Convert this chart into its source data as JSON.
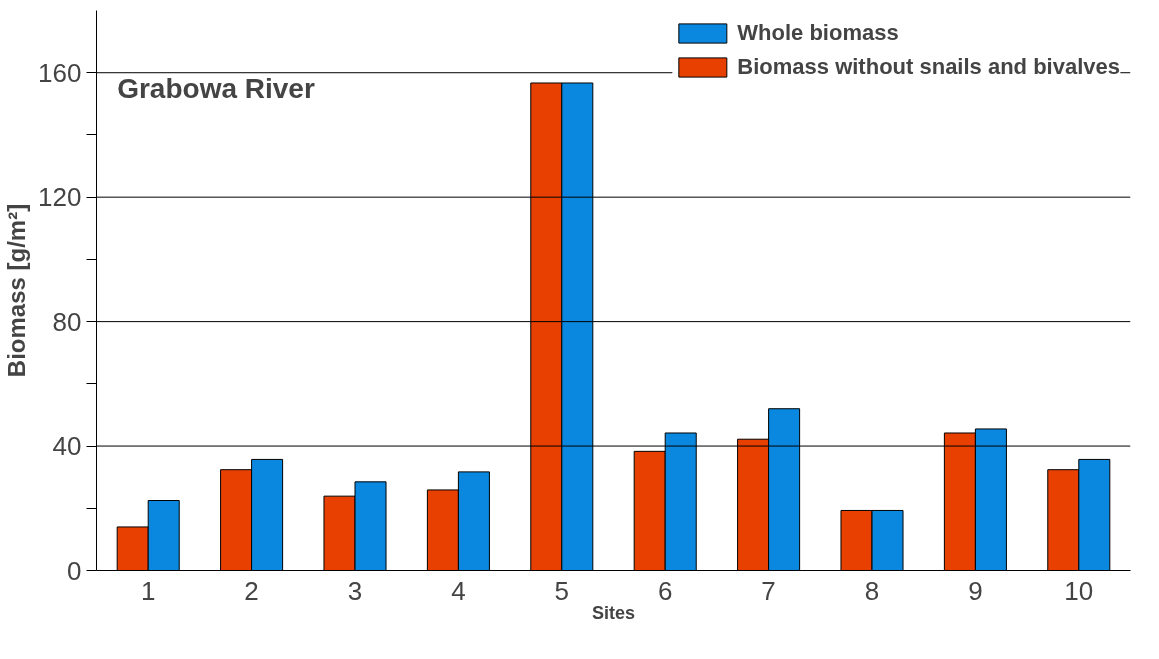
{
  "chart_data": {
    "type": "bar",
    "title": "Grabowa River",
    "xlabel": "Sites",
    "ylabel": "Biomass [g/m²]",
    "categories": [
      "1",
      "2",
      "3",
      "4",
      "5",
      "6",
      "7",
      "8",
      "9",
      "10"
    ],
    "series": [
      {
        "name": "Biomass without snails and bivalves",
        "color": "#e84000",
        "values": [
          14,
          32.4,
          23.9,
          25.9,
          156.7,
          38.3,
          42.2,
          19.3,
          44.2,
          32.4
        ]
      },
      {
        "name": "Whole biomass",
        "color": "#0a88e0",
        "values": [
          22.5,
          35.7,
          28.5,
          31.7,
          156.7,
          44.2,
          52,
          19.3,
          45.5,
          35.7
        ]
      }
    ],
    "ylim": [
      0,
      180
    ],
    "yticks": [
      0,
      {
        "value": 20,
        "label": null
      },
      40,
      {
        "value": 60,
        "label": null
      },
      80,
      {
        "value": 100,
        "label": null
      },
      120,
      {
        "value": 140,
        "label": null
      },
      160
    ],
    "grid": "y",
    "legend": "top right"
  }
}
